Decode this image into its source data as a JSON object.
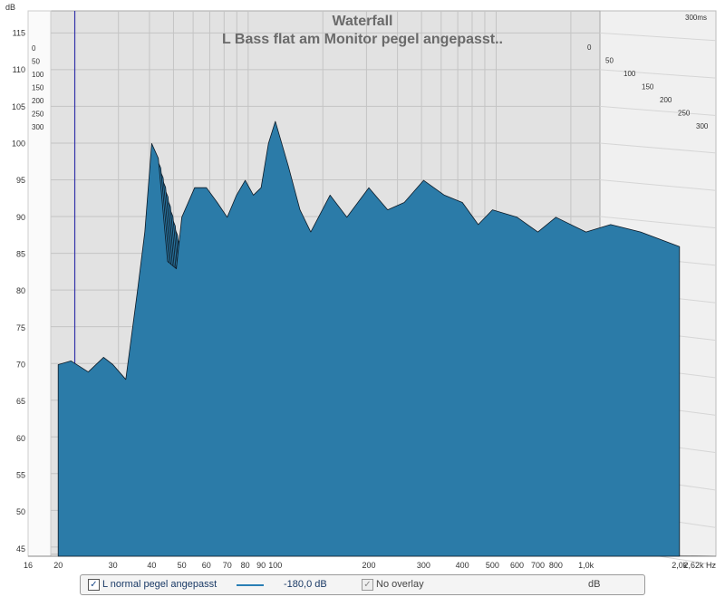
{
  "colors": {
    "series": "#2b7ba8",
    "series_edge": "#0d1a26",
    "back_wall": "#e2e2e2",
    "side_wall": "#f0f0f0",
    "grid": "#c4c4c4",
    "marker": "#3333aa",
    "title": "#6a6a6a"
  },
  "chart_data": {
    "type": "area",
    "subtype": "waterfall",
    "title": "Waterfall",
    "subtitle": "L Bass flat am Monitor pegel angepasst..",
    "ylabel": "dB",
    "xlabel_unit": "Hz",
    "zlabel_unit": "300ms",
    "x_scale": "log",
    "xlim": [
      16,
      2620
    ],
    "ylim": [
      44,
      118
    ],
    "x_ticks": [
      {
        "v": 16,
        "t": "16"
      },
      {
        "v": 20,
        "t": "20"
      },
      {
        "v": 30,
        "t": "30"
      },
      {
        "v": 40,
        "t": "40"
      },
      {
        "v": 50,
        "t": "50"
      },
      {
        "v": 60,
        "t": "60"
      },
      {
        "v": 70,
        "t": "70"
      },
      {
        "v": 80,
        "t": "80"
      },
      {
        "v": 90,
        "t": "90"
      },
      {
        "v": 100,
        "t": "100"
      },
      {
        "v": 200,
        "t": "200"
      },
      {
        "v": 300,
        "t": "300"
      },
      {
        "v": 400,
        "t": "400"
      },
      {
        "v": 500,
        "t": "500"
      },
      {
        "v": 600,
        "t": "600"
      },
      {
        "v": 700,
        "t": "700"
      },
      {
        "v": 800,
        "t": "800"
      },
      {
        "v": 1000,
        "t": "1,0k"
      },
      {
        "v": 2000,
        "t": "2,0k"
      },
      {
        "v": 2620,
        "t": "2,62k Hz"
      }
    ],
    "y_ticks": [
      45,
      50,
      55,
      60,
      65,
      70,
      75,
      80,
      85,
      90,
      95,
      100,
      105,
      110,
      115
    ],
    "time_slices_ms": [
      0,
      50,
      100,
      150,
      200,
      250,
      300
    ],
    "time_labels": [
      "0",
      "50",
      "100",
      "150",
      "200",
      "250",
      "300"
    ],
    "marker_frequency": 20,
    "front_slice": {
      "name": "L normal pegel angepasst",
      "x": [
        20,
        22,
        25,
        28,
        30,
        33,
        36,
        38,
        40,
        42,
        45,
        48,
        50,
        55,
        60,
        65,
        70,
        75,
        80,
        85,
        90,
        95,
        100,
        110,
        120,
        130,
        150,
        170,
        200,
        230,
        260,
        300,
        350,
        400,
        450,
        500,
        600,
        700,
        800,
        1000,
        1200,
        1500,
        2000
      ],
      "y": [
        70,
        70.5,
        69,
        71,
        70,
        68,
        80,
        88,
        100,
        98,
        84,
        83,
        90,
        94,
        94,
        92,
        90,
        93,
        95,
        93,
        94,
        100,
        103,
        97,
        91,
        88,
        93,
        90,
        94,
        91,
        92,
        95,
        93,
        92,
        89,
        91,
        90,
        88,
        90,
        88,
        89,
        88,
        86
      ]
    }
  },
  "legend": {
    "series_label": "L normal pegel angepasst",
    "series_checked": true,
    "value_label": "-180,0 dB",
    "overlay_label": "No overlay",
    "overlay_checked": false,
    "unit_label": "dB"
  }
}
